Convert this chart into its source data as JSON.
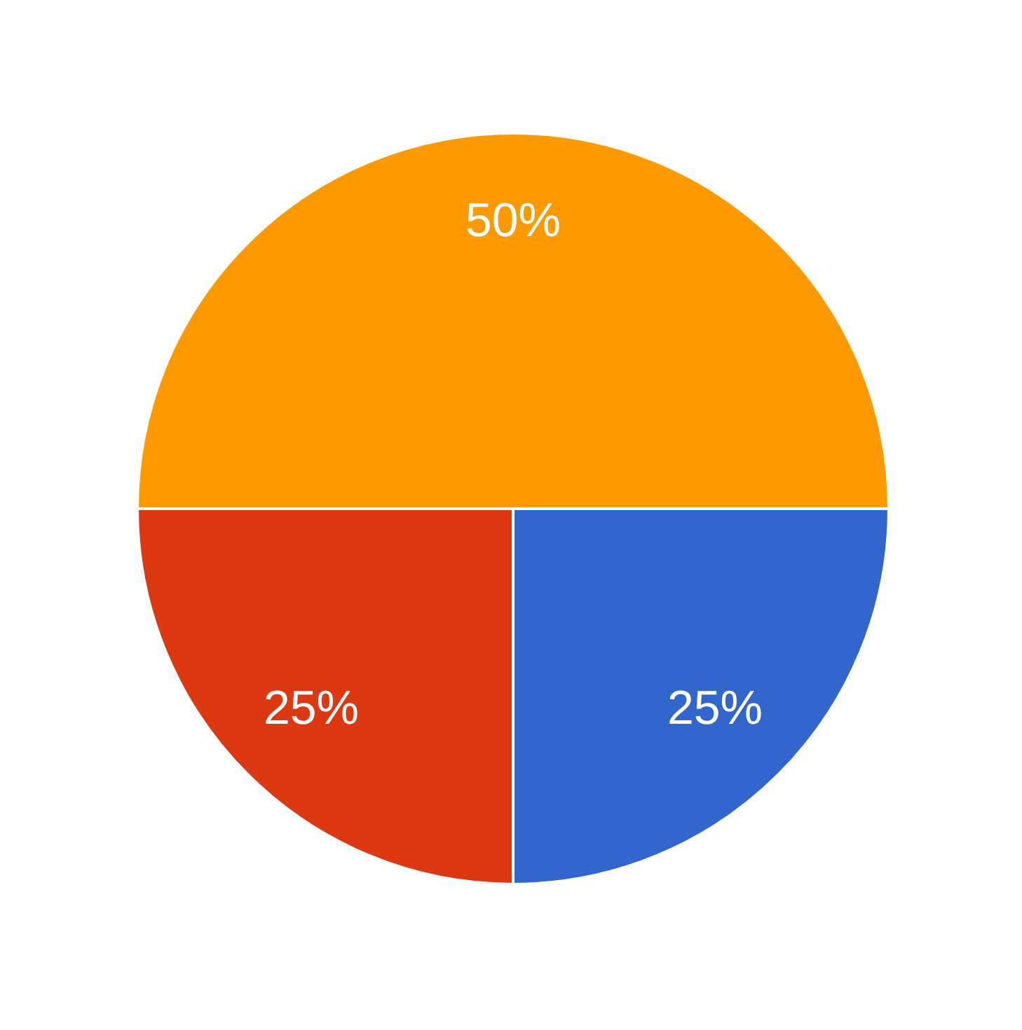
{
  "chart_data": {
    "type": "pie",
    "categories": [
      null,
      null,
      null
    ],
    "values": [
      25,
      25,
      50
    ],
    "colors": [
      "#3366cc",
      "#dc3912",
      "#ff9900"
    ],
    "value_labels": [
      "25%",
      "25%",
      "50%"
    ]
  }
}
